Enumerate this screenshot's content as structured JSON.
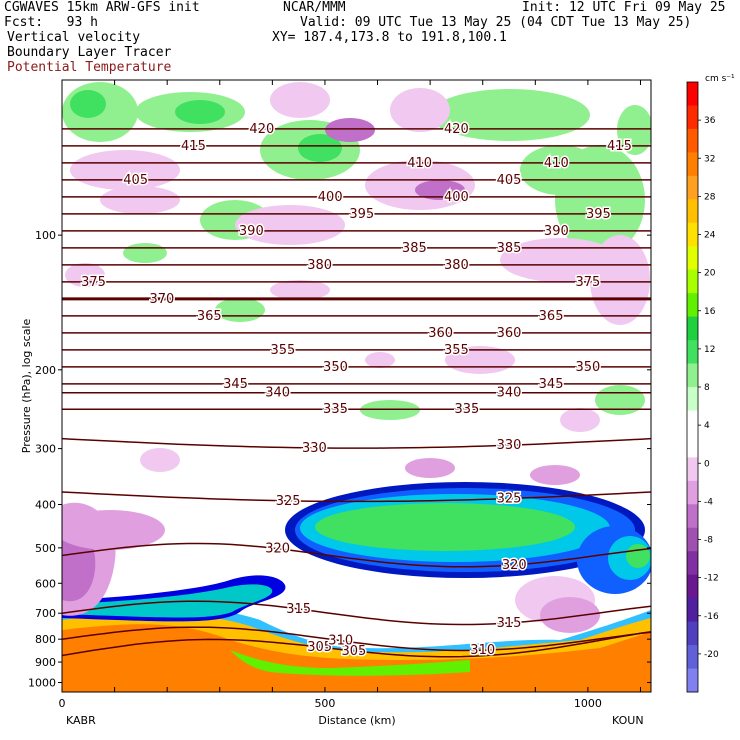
{
  "header": {
    "line1_left": "CGWAVES 15km ARW-GFS init",
    "line1_mid": "NCAR/MMM",
    "line1_right": "Init: 12 UTC Fri 09 May 25",
    "line2_left": "Fcst:   93 h",
    "line2_right": "Valid: 09 UTC Tue 13 May 25 (04 CDT Tue 13 May 25)",
    "line3_left": "Vertical velocity",
    "line3_right": "XY= 187.4,173.8 to 191.8,100.1",
    "line4_left": "Boundary Layer Tracer",
    "line5_left": "Potential Temperature",
    "theta_color": "#8b1a1a"
  },
  "chart_data": {
    "type": "heatmap",
    "xlabel": "Distance (km)",
    "ylabel": "Pressure (hPa), log scale",
    "x_ticks": [
      "0",
      "500",
      "1000"
    ],
    "x_tick_values": [
      0,
      500,
      1000
    ],
    "xlim": [
      0,
      1120
    ],
    "y_ticks": [
      "100",
      "200",
      "300",
      "400",
      "500",
      "600",
      "700",
      "800",
      "900",
      "1000"
    ],
    "y_tick_values": [
      100,
      200,
      300,
      400,
      500,
      600,
      700,
      800,
      900,
      1000
    ],
    "ylim": [
      1050,
      45
    ],
    "y_scale": "log",
    "endpoint_left": "KABR",
    "endpoint_right": "KOUN",
    "colorbar": {
      "unit": "cm s⁻¹",
      "tick_labels": [
        "36",
        "32",
        "28",
        "24",
        "20",
        "16",
        "12",
        "8",
        "4",
        "0",
        "-4",
        "-8",
        "-12",
        "-16",
        "-20"
      ],
      "tick_values": [
        36,
        32,
        28,
        24,
        20,
        16,
        12,
        8,
        4,
        0,
        -4,
        -8,
        -12,
        -16,
        -20
      ],
      "colors": [
        "#ff0000",
        "#ff2a00",
        "#ff5a00",
        "#ff7f00",
        "#ffa020",
        "#ffc000",
        "#ffe000",
        "#e0ff00",
        "#a8ff00",
        "#60f000",
        "#20d040",
        "#40e060",
        "#90f090",
        "#c8ffc8",
        "#ffffff",
        "#ffffff",
        "#f0c8f0",
        "#e0a0e0",
        "#c070c8",
        "#a050b0",
        "#8030a0",
        "#6a1890",
        "#5020a0",
        "#5040c0",
        "#6060d8",
        "#8080f0"
      ]
    },
    "theta_contours": [
      {
        "theta": 305,
        "label_positions_km": [
          490,
          555
        ]
      },
      {
        "theta": 310,
        "label_positions_km": [
          530,
          800
        ]
      },
      {
        "theta": 315,
        "label_positions_km": [
          450,
          850
        ]
      },
      {
        "theta": 320,
        "label_positions_km": [
          410,
          860
        ]
      },
      {
        "theta": 325,
        "label_positions_km": [
          430,
          850
        ]
      },
      {
        "theta": 330,
        "label_positions_km": [
          480,
          850
        ]
      },
      {
        "theta": 335,
        "label_positions_km": [
          520,
          770
        ]
      },
      {
        "theta": 340,
        "label_positions_km": [
          410,
          850
        ]
      },
      {
        "theta": 345,
        "label_positions_km": [
          330,
          930
        ]
      },
      {
        "theta": 350,
        "label_positions_km": [
          520,
          1000
        ]
      },
      {
        "theta": 355,
        "label_positions_km": [
          420,
          750
        ]
      },
      {
        "theta": 360,
        "label_positions_km": [
          720,
          850
        ]
      },
      {
        "theta": 365,
        "label_positions_km": [
          280,
          930
        ]
      },
      {
        "theta": 370,
        "label_positions_km": [
          190
        ]
      },
      {
        "theta": 375,
        "label_positions_km": [
          60,
          1000
        ]
      },
      {
        "theta": 380,
        "label_positions_km": [
          490,
          750
        ]
      },
      {
        "theta": 385,
        "label_positions_km": [
          670,
          850
        ]
      },
      {
        "theta": 390,
        "label_positions_km": [
          360,
          940
        ]
      },
      {
        "theta": 395,
        "label_positions_km": [
          570,
          1020
        ]
      },
      {
        "theta": 400,
        "label_positions_km": [
          510,
          750
        ]
      },
      {
        "theta": 405,
        "label_positions_km": [
          140,
          850
        ]
      },
      {
        "theta": 410,
        "label_positions_km": [
          680,
          940
        ]
      },
      {
        "theta": 415,
        "label_positions_km": [
          250,
          1060
        ]
      },
      {
        "theta": 420,
        "label_positions_km": [
          380,
          750
        ]
      }
    ]
  }
}
